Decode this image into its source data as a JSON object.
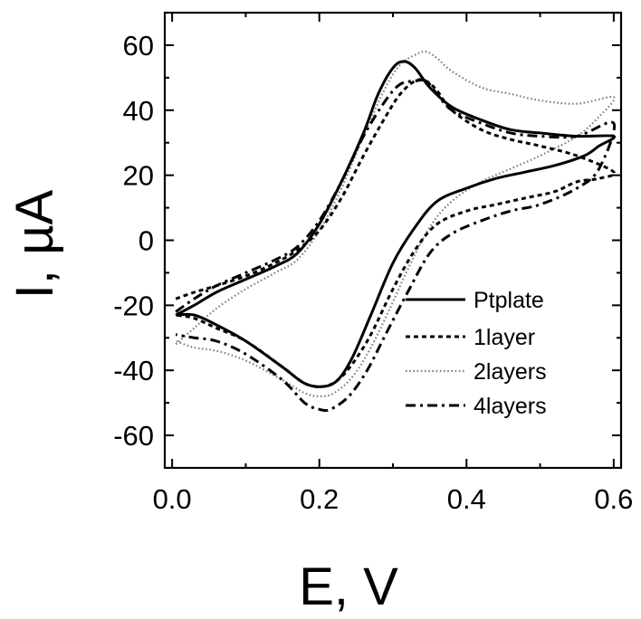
{
  "chart_data": {
    "type": "line",
    "title": "",
    "xlabel": "E, V",
    "ylabel": "I, µA",
    "xlim": [
      -0.01,
      0.61
    ],
    "ylim": [
      -70,
      70
    ],
    "x_major_ticks": [
      0.0,
      0.2,
      0.4,
      0.6
    ],
    "x_tick_labels": [
      "0.0",
      "0.2",
      "0.4",
      "0.6"
    ],
    "y_major_ticks": [
      -60,
      -40,
      -20,
      0,
      20,
      40,
      60
    ],
    "y_tick_labels": [
      "-60",
      "-40",
      "-20",
      "0",
      "20",
      "40",
      "60"
    ],
    "grid": false,
    "legend_position": "lower-right",
    "series": [
      {
        "name": "Ptplate",
        "style": "solid",
        "color": "#000000",
        "points": [
          [
            0.005,
            -23
          ],
          [
            0.03,
            -20
          ],
          [
            0.06,
            -16
          ],
          [
            0.1,
            -12
          ],
          [
            0.14,
            -8
          ],
          [
            0.17,
            -4
          ],
          [
            0.2,
            5
          ],
          [
            0.23,
            18
          ],
          [
            0.26,
            33
          ],
          [
            0.28,
            45
          ],
          [
            0.3,
            53
          ],
          [
            0.315,
            55
          ],
          [
            0.33,
            53
          ],
          [
            0.35,
            47
          ],
          [
            0.38,
            41
          ],
          [
            0.42,
            37
          ],
          [
            0.46,
            34
          ],
          [
            0.5,
            33
          ],
          [
            0.55,
            32
          ],
          [
            0.6,
            32
          ],
          [
            0.58,
            29
          ],
          [
            0.56,
            26
          ],
          [
            0.52,
            23
          ],
          [
            0.48,
            21
          ],
          [
            0.44,
            19
          ],
          [
            0.4,
            16
          ],
          [
            0.36,
            12
          ],
          [
            0.33,
            4
          ],
          [
            0.3,
            -7
          ],
          [
            0.27,
            -23
          ],
          [
            0.245,
            -36
          ],
          [
            0.225,
            -43
          ],
          [
            0.205,
            -45
          ],
          [
            0.18,
            -44
          ],
          [
            0.15,
            -39
          ],
          [
            0.1,
            -31
          ],
          [
            0.06,
            -26
          ],
          [
            0.03,
            -23
          ],
          [
            0.005,
            -23
          ]
        ]
      },
      {
        "name": "1layer",
        "style": "dotted",
        "color": "#000000",
        "points": [
          [
            0.005,
            -18
          ],
          [
            0.03,
            -16
          ],
          [
            0.06,
            -14
          ],
          [
            0.1,
            -11
          ],
          [
            0.14,
            -7
          ],
          [
            0.17,
            -3
          ],
          [
            0.2,
            3
          ],
          [
            0.23,
            13
          ],
          [
            0.26,
            26
          ],
          [
            0.29,
            38
          ],
          [
            0.31,
            45
          ],
          [
            0.33,
            49
          ],
          [
            0.345,
            49
          ],
          [
            0.36,
            46
          ],
          [
            0.38,
            40
          ],
          [
            0.42,
            34
          ],
          [
            0.46,
            31
          ],
          [
            0.5,
            29
          ],
          [
            0.55,
            26
          ],
          [
            0.6,
            21
          ],
          [
            0.58,
            19
          ],
          [
            0.55,
            18
          ],
          [
            0.52,
            15
          ],
          [
            0.48,
            13
          ],
          [
            0.44,
            11
          ],
          [
            0.4,
            9
          ],
          [
            0.36,
            5
          ],
          [
            0.33,
            -3
          ],
          [
            0.3,
            -15
          ],
          [
            0.27,
            -29
          ],
          [
            0.245,
            -38
          ],
          [
            0.225,
            -43
          ],
          [
            0.205,
            -45
          ],
          [
            0.18,
            -44
          ],
          [
            0.15,
            -39
          ],
          [
            0.1,
            -31
          ],
          [
            0.06,
            -27
          ],
          [
            0.03,
            -24
          ],
          [
            0.005,
            -23
          ]
        ]
      },
      {
        "name": "2layers",
        "style": "fine-dotted",
        "color": "#808080",
        "points": [
          [
            0.005,
            -32
          ],
          [
            0.03,
            -27
          ],
          [
            0.06,
            -21
          ],
          [
            0.1,
            -15
          ],
          [
            0.14,
            -10
          ],
          [
            0.17,
            -6
          ],
          [
            0.2,
            3
          ],
          [
            0.23,
            16
          ],
          [
            0.26,
            32
          ],
          [
            0.29,
            47
          ],
          [
            0.31,
            54
          ],
          [
            0.33,
            57
          ],
          [
            0.345,
            58
          ],
          [
            0.36,
            56
          ],
          [
            0.38,
            52
          ],
          [
            0.42,
            47
          ],
          [
            0.46,
            45
          ],
          [
            0.5,
            43
          ],
          [
            0.55,
            42
          ],
          [
            0.6,
            44
          ],
          [
            0.58,
            38
          ],
          [
            0.55,
            32
          ],
          [
            0.5,
            26
          ],
          [
            0.46,
            22
          ],
          [
            0.42,
            18
          ],
          [
            0.38,
            12
          ],
          [
            0.35,
            4
          ],
          [
            0.32,
            -9
          ],
          [
            0.3,
            -19
          ],
          [
            0.27,
            -33
          ],
          [
            0.245,
            -42
          ],
          [
            0.22,
            -47
          ],
          [
            0.2,
            -48
          ],
          [
            0.18,
            -47
          ],
          [
            0.15,
            -43
          ],
          [
            0.1,
            -37
          ],
          [
            0.06,
            -34
          ],
          [
            0.03,
            -33
          ],
          [
            0.005,
            -31
          ]
        ]
      },
      {
        "name": "4layers",
        "style": "dash-dot",
        "color": "#000000",
        "points": [
          [
            0.005,
            -22
          ],
          [
            0.03,
            -18
          ],
          [
            0.06,
            -14
          ],
          [
            0.1,
            -10
          ],
          [
            0.14,
            -6
          ],
          [
            0.17,
            -2
          ],
          [
            0.2,
            6
          ],
          [
            0.23,
            18
          ],
          [
            0.26,
            32
          ],
          [
            0.29,
            43
          ],
          [
            0.31,
            48
          ],
          [
            0.33,
            49
          ],
          [
            0.345,
            49
          ],
          [
            0.36,
            45
          ],
          [
            0.38,
            40
          ],
          [
            0.42,
            36
          ],
          [
            0.46,
            33
          ],
          [
            0.5,
            32
          ],
          [
            0.55,
            32
          ],
          [
            0.6,
            36
          ],
          [
            0.58,
            22
          ],
          [
            0.55,
            16
          ],
          [
            0.5,
            11
          ],
          [
            0.46,
            9
          ],
          [
            0.42,
            6
          ],
          [
            0.38,
            2
          ],
          [
            0.35,
            -4
          ],
          [
            0.32,
            -16
          ],
          [
            0.29,
            -29
          ],
          [
            0.265,
            -40
          ],
          [
            0.24,
            -48
          ],
          [
            0.215,
            -52
          ],
          [
            0.2,
            -52
          ],
          [
            0.18,
            -50
          ],
          [
            0.15,
            -43
          ],
          [
            0.1,
            -35
          ],
          [
            0.06,
            -31
          ],
          [
            0.03,
            -30
          ],
          [
            0.005,
            -29
          ]
        ]
      }
    ]
  }
}
